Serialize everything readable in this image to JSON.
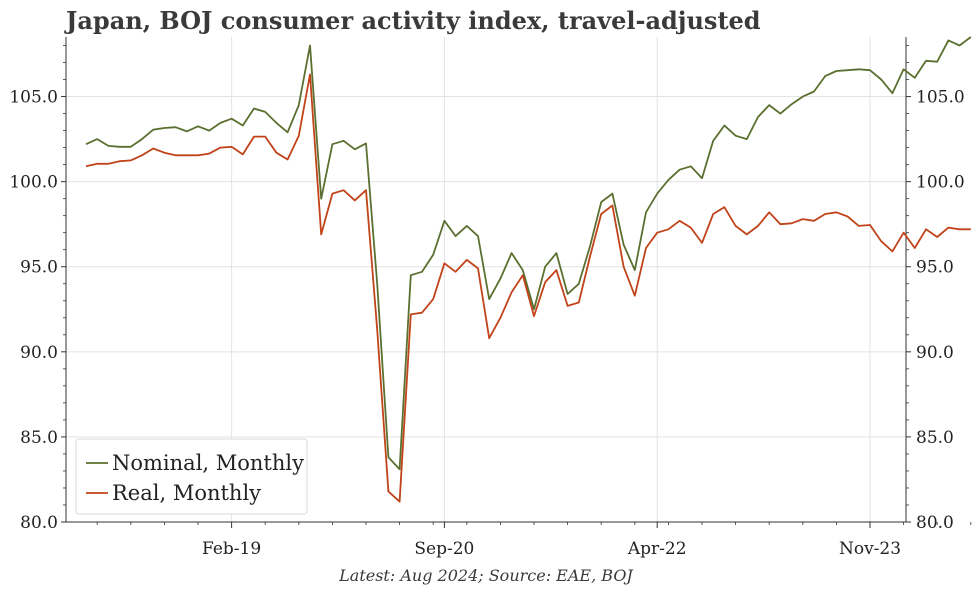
{
  "title": "Japan, BOJ consumer activity index, travel-adjusted",
  "footnote": "Latest: Aug 2024; Source: EAE, BOJ",
  "chart_data": {
    "type": "line",
    "title": "Japan, BOJ consumer activity index, travel-adjusted",
    "xlabel": "",
    "ylabel": "",
    "ylim": [
      80,
      108.5
    ],
    "y_ticks": [
      80,
      85,
      90,
      95,
      100,
      105
    ],
    "y_tick_labels": [
      "80.0",
      "85.0",
      "90.0",
      "95.0",
      "100.0",
      "105.0"
    ],
    "x_tick_labels": [
      "Feb-19",
      "Sep-20",
      "Apr-22",
      "Nov-23"
    ],
    "x_tick_index": [
      13,
      32,
      51,
      70
    ],
    "x_start": "Jan-18",
    "x_end": "Aug-24",
    "grid": true,
    "secondary_y_axis": true,
    "legend_position": "bottom-left",
    "colors": {
      "nominal": "#5b7030",
      "real": "#c0431a",
      "grid": "#e3e3e3",
      "axis": "#333333"
    },
    "series": [
      {
        "name": "Nominal, Monthly",
        "values": [
          102.2,
          102.5,
          102.1,
          102.05,
          102.05,
          102.5,
          103.05,
          103.15,
          103.2,
          102.95,
          103.25,
          103.0,
          103.45,
          103.7,
          103.3,
          104.3,
          104.1,
          103.45,
          102.9,
          104.5,
          108.0,
          99.0,
          102.2,
          102.4,
          101.9,
          102.25,
          94.0,
          83.8,
          83.1,
          94.5,
          94.7,
          95.7,
          97.7,
          96.8,
          97.4,
          96.8,
          93.1,
          94.3,
          95.8,
          94.8,
          92.5,
          95.0,
          95.8,
          93.4,
          94.0,
          96.2,
          98.8,
          99.3,
          96.3,
          94.8,
          98.2,
          99.3,
          100.1,
          100.7,
          100.9,
          100.2,
          102.4,
          103.3,
          102.7,
          102.5,
          103.8,
          104.5,
          104.0,
          104.55,
          105.0,
          105.3,
          106.2,
          106.5,
          106.55,
          106.6,
          106.55,
          106.0,
          105.2,
          106.6,
          106.1,
          107.1,
          107.05,
          108.3,
          108.0,
          108.5
        ]
      },
      {
        "name": "Real, Monthly",
        "values": [
          100.9,
          101.05,
          101.05,
          101.2,
          101.25,
          101.55,
          101.95,
          101.7,
          101.55,
          101.55,
          101.55,
          101.65,
          102.0,
          102.05,
          101.6,
          102.65,
          102.65,
          101.7,
          101.3,
          102.7,
          106.3,
          96.9,
          99.3,
          99.5,
          98.9,
          99.5,
          91.3,
          81.8,
          81.2,
          92.2,
          92.3,
          93.1,
          95.2,
          94.7,
          95.4,
          94.9,
          90.8,
          92.0,
          93.5,
          94.5,
          92.1,
          94.1,
          94.8,
          92.7,
          92.9,
          95.6,
          98.1,
          98.6,
          95.0,
          93.3,
          96.1,
          97.0,
          97.2,
          97.7,
          97.3,
          96.4,
          98.1,
          98.5,
          97.4,
          96.9,
          97.4,
          98.2,
          97.5,
          97.55,
          97.8,
          97.7,
          98.1,
          98.2,
          97.95,
          97.4,
          97.45,
          96.5,
          95.9,
          97.0,
          96.1,
          97.2,
          96.75,
          97.3,
          97.2,
          97.2
        ]
      }
    ]
  }
}
